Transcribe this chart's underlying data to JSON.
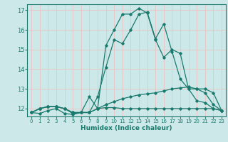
{
  "xlabel": "Humidex (Indice chaleur)",
  "xlim": [
    -0.5,
    23.5
  ],
  "ylim": [
    11.6,
    17.3
  ],
  "yticks": [
    12,
    13,
    14,
    15,
    16,
    17
  ],
  "xticks": [
    0,
    1,
    2,
    3,
    4,
    5,
    6,
    7,
    8,
    9,
    10,
    11,
    12,
    13,
    14,
    15,
    16,
    17,
    18,
    19,
    20,
    21,
    22,
    23
  ],
  "bg_color": "#cde8e8",
  "line_color": "#1a7a6e",
  "grid_color": "#e8c8c8",
  "lines": [
    [
      11.8,
      11.75,
      11.9,
      12.0,
      11.75,
      11.7,
      11.8,
      12.6,
      12.0,
      15.2,
      16.0,
      16.8,
      16.8,
      17.1,
      16.85,
      15.5,
      14.6,
      15.0,
      14.8,
      13.0,
      12.4,
      12.3,
      12.0,
      11.9
    ],
    [
      11.8,
      12.0,
      12.1,
      12.1,
      12.0,
      11.8,
      11.8,
      11.8,
      12.6,
      14.1,
      15.5,
      15.3,
      16.0,
      16.8,
      16.9,
      15.55,
      16.3,
      14.9,
      13.5,
      13.0,
      13.0,
      12.8,
      12.2,
      11.9
    ],
    [
      11.8,
      12.0,
      12.1,
      12.1,
      12.0,
      11.75,
      11.8,
      11.8,
      12.0,
      12.05,
      12.05,
      12.0,
      12.0,
      12.0,
      12.0,
      12.0,
      12.0,
      12.0,
      12.0,
      12.0,
      12.0,
      12.0,
      12.0,
      11.9
    ],
    [
      11.8,
      12.0,
      12.1,
      12.1,
      12.0,
      11.8,
      11.8,
      11.8,
      12.0,
      12.2,
      12.35,
      12.5,
      12.6,
      12.7,
      12.75,
      12.8,
      12.9,
      13.0,
      13.05,
      13.1,
      13.0,
      13.0,
      12.8,
      11.9
    ]
  ]
}
